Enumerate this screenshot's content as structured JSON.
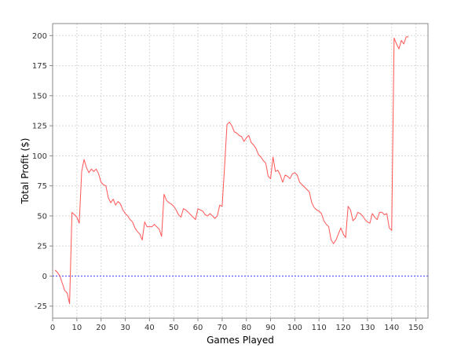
{
  "chart_data": {
    "type": "line",
    "title": "",
    "xlabel": "Games Played",
    "ylabel": "Total Profit ($)",
    "xlim": [
      0,
      155
    ],
    "ylim": [
      -35,
      210
    ],
    "x_ticks": [
      0,
      10,
      20,
      30,
      40,
      50,
      60,
      70,
      80,
      90,
      100,
      110,
      120,
      130,
      140,
      150
    ],
    "y_ticks": [
      -25,
      0,
      25,
      50,
      75,
      100,
      125,
      150,
      175,
      200
    ],
    "grid": true,
    "reference_line": {
      "y": 0,
      "color": "#4040ff"
    },
    "series": [
      {
        "color": "#ff5555",
        "x": [
          1,
          2,
          3,
          4,
          5,
          6,
          7,
          8,
          9,
          10,
          11,
          12,
          13,
          14,
          15,
          16,
          17,
          18,
          19,
          20,
          21,
          22,
          23,
          24,
          25,
          26,
          27,
          28,
          29,
          30,
          31,
          32,
          33,
          34,
          35,
          36,
          37,
          38,
          39,
          40,
          41,
          42,
          43,
          44,
          45,
          46,
          47,
          48,
          49,
          50,
          51,
          52,
          53,
          54,
          55,
          56,
          57,
          58,
          59,
          60,
          61,
          62,
          63,
          64,
          65,
          66,
          67,
          68,
          69,
          70,
          71,
          72,
          73,
          74,
          75,
          76,
          77,
          78,
          79,
          80,
          81,
          82,
          83,
          84,
          85,
          86,
          87,
          88,
          89,
          90,
          91,
          92,
          93,
          94,
          95,
          96,
          97,
          98,
          99,
          100,
          101,
          102,
          103,
          104,
          105,
          106,
          107,
          108,
          109,
          110,
          111,
          112,
          113,
          114,
          115,
          116,
          117,
          118,
          119,
          120,
          121,
          122,
          123,
          124,
          125,
          126,
          127,
          128,
          129,
          130,
          131,
          132,
          133,
          134,
          135,
          136,
          137,
          138,
          139,
          140,
          141,
          142,
          143,
          144,
          145,
          146,
          147
        ],
        "y": [
          5,
          3,
          0,
          -6,
          -12,
          -14,
          -23,
          53,
          51,
          49,
          44,
          87,
          97,
          90,
          86,
          89,
          87,
          89,
          85,
          78,
          76,
          75,
          65,
          61,
          64,
          59,
          62,
          60,
          55,
          52,
          50,
          47,
          45,
          40,
          37,
          35,
          30,
          45,
          41,
          41,
          41,
          43,
          41,
          39,
          33,
          68,
          63,
          61,
          60,
          58,
          55,
          51,
          49,
          56,
          55,
          53,
          51,
          49,
          47,
          56,
          55,
          54,
          51,
          50,
          52,
          50,
          48,
          50,
          59,
          58,
          91,
          126,
          128,
          125,
          120,
          119,
          117,
          116,
          112,
          115,
          117,
          111,
          109,
          106,
          101,
          99,
          96,
          94,
          83,
          81,
          99,
          87,
          88,
          84,
          78,
          84,
          83,
          81,
          85,
          86,
          84,
          78,
          76,
          74,
          72,
          70,
          61,
          57,
          55,
          54,
          52,
          46,
          43,
          41,
          30,
          27,
          30,
          35,
          40,
          35,
          32,
          58,
          55,
          46,
          48,
          53,
          52,
          50,
          47,
          45,
          44,
          52,
          49,
          47,
          53,
          53,
          51,
          52,
          40,
          38,
          198,
          193,
          189,
          196,
          193,
          199,
          199
        ]
      }
    ]
  }
}
